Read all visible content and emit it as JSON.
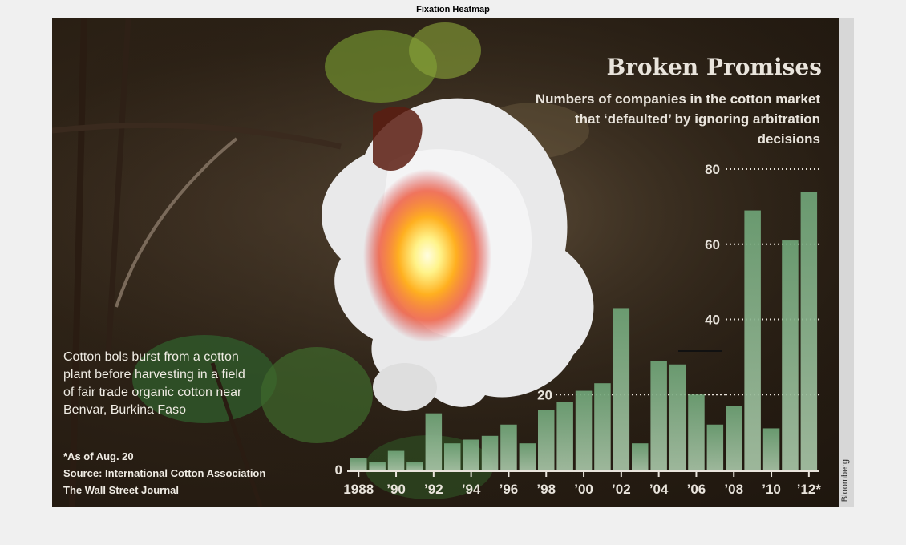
{
  "figure_title": "Fixation Heatmap",
  "headline": "Broken Promises",
  "subtitle": "Numbers of companies in the cotton market that ‘defaulted’ by ignoring arbitration decisions",
  "caption": "Cotton bols burst from a cotton plant before harvesting in a field of fair trade organic cotton near Benvar, Burkina Faso",
  "footnote": "*As of Aug. 20",
  "source": "Source: International Cotton Association",
  "publisher": "The Wall Street Journal",
  "credit": "Bloomberg",
  "colors": {
    "bar": "#8fb392",
    "text": "#e9e4dc",
    "heat_core": "#fff6a8",
    "heat_mid": "#ff9a1a",
    "heat_outer": "#e4302a"
  },
  "chart_data": {
    "type": "bar",
    "x": [
      1988,
      1989,
      1990,
      1991,
      1992,
      1993,
      1994,
      1995,
      1996,
      1997,
      1998,
      1999,
      2000,
      2001,
      2002,
      2003,
      2004,
      2005,
      2006,
      2007,
      2008,
      2009,
      2010,
      2011,
      2012
    ],
    "values": [
      3,
      2,
      5,
      2,
      15,
      7,
      8,
      9,
      12,
      7,
      16,
      18,
      21,
      23,
      43,
      7,
      29,
      28,
      20,
      12,
      17,
      69,
      11,
      61,
      74
    ],
    "tick_labels": [
      "1988",
      "’90",
      "’92",
      "’94",
      "’96",
      "’98",
      "’00",
      "’02",
      "’04",
      "’06",
      "’08",
      "’10",
      "’12*"
    ],
    "y_ticks": [
      "0",
      "20",
      "40",
      "60",
      "80"
    ],
    "ylim": [
      0,
      80
    ],
    "grid": "dotted at 20, 40, 60, 80"
  }
}
